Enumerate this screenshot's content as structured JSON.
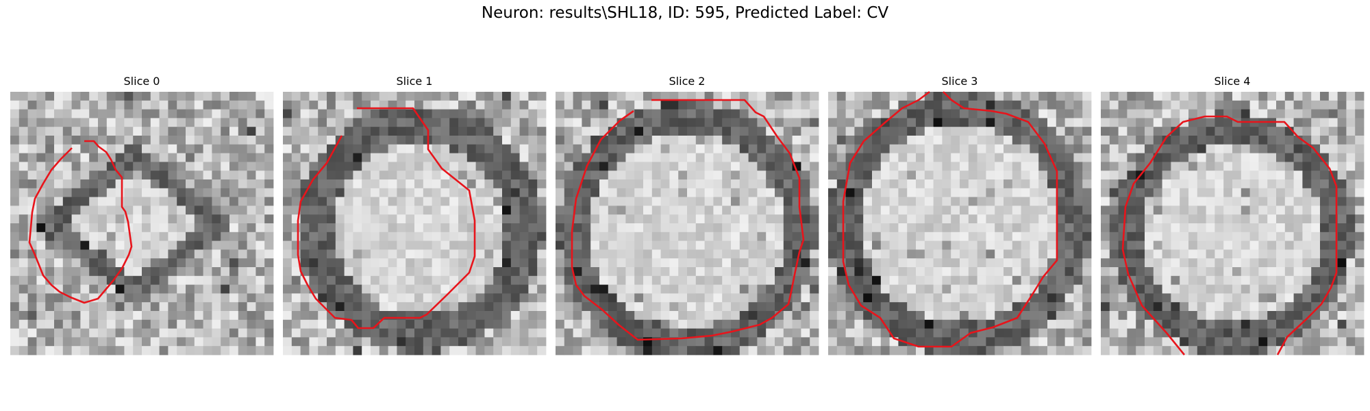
{
  "figure": {
    "title": "Neuron: results\\SHL18, ID: 595, Predicted Label: CV"
  },
  "panels": [
    {
      "title": "Slice 0"
    },
    {
      "title": "Slice 1"
    },
    {
      "title": "Slice 2"
    },
    {
      "title": "Slice 3"
    },
    {
      "title": "Slice 4"
    }
  ],
  "colors": {
    "contour": "#e8141b",
    "background": "#ffffff"
  },
  "image": {
    "colormap": "grayscale",
    "grid_cells": 30
  }
}
